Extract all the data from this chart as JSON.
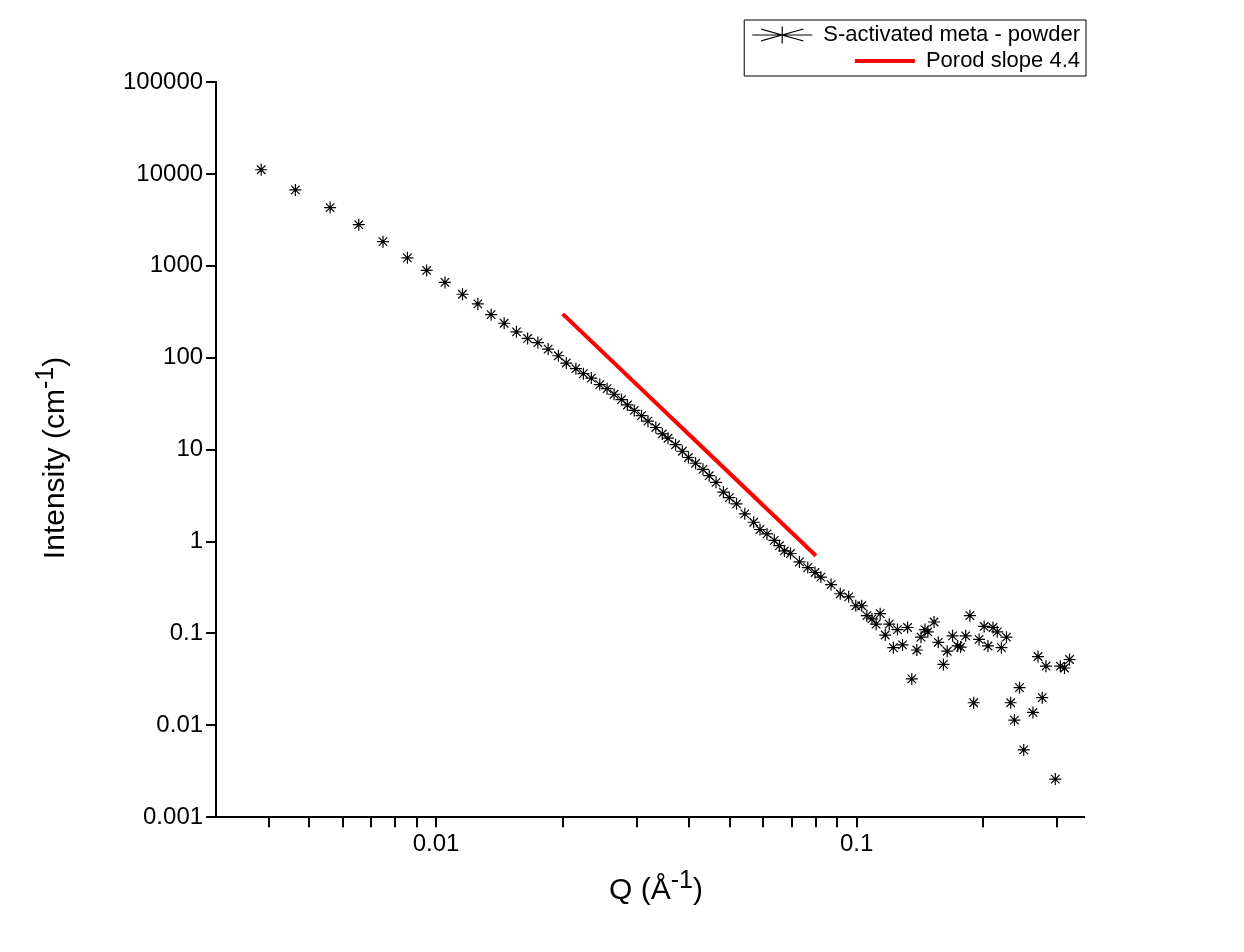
{
  "chart_data": {
    "type": "scatter",
    "xlabel": "Q (Å$^{-1}$)",
    "ylabel": "Intensity (cm$^{-1}$)",
    "log": "xy",
    "grid": false,
    "legend": "top right",
    "xlim": [
      0.003,
      0.347
    ],
    "ylim": [
      0.001,
      100000
    ],
    "xticks": [
      {
        "value": 0.004,
        "label": null
      },
      {
        "value": 0.005,
        "label": null
      },
      {
        "value": 0.006,
        "label": null
      },
      {
        "value": 0.007,
        "label": null
      },
      {
        "value": 0.008,
        "label": null
      },
      {
        "value": 0.009,
        "label": null
      },
      0.01,
      {
        "value": 0.02,
        "label": null
      },
      {
        "value": 0.03,
        "label": null
      },
      {
        "value": 0.04,
        "label": null
      },
      {
        "value": 0.05,
        "label": null
      },
      {
        "value": 0.06,
        "label": null
      },
      {
        "value": 0.07,
        "label": null
      },
      {
        "value": 0.08,
        "label": null
      },
      {
        "value": 0.09,
        "label": null
      },
      0.1,
      {
        "value": 0.2,
        "label": null
      },
      {
        "value": 0.3,
        "label": null
      }
    ],
    "yticks": [
      0.001,
      0.01,
      0.1,
      1,
      10,
      100,
      1000,
      10000,
      100000
    ],
    "series": [
      {
        "name": "S-activated meta - powder",
        "marker": "cross",
        "color": "#000000",
        "x": [
          0.00384,
          0.00463,
          0.0056,
          0.00655,
          0.00748,
          0.00855,
          0.0095,
          0.0105,
          0.01156,
          0.01257,
          0.01352,
          0.01452,
          0.01553,
          0.01651,
          0.01746,
          0.01847,
          0.01953,
          0.0204,
          0.0215,
          0.0224,
          0.0234,
          0.0245,
          0.0255,
          0.0265,
          0.0276,
          0.0285,
          0.0296,
          0.0308,
          0.0319,
          0.0333,
          0.0345,
          0.0356,
          0.0371,
          0.0385,
          0.0398,
          0.0414,
          0.0431,
          0.0446,
          0.0463,
          0.0482,
          0.0498,
          0.0518,
          0.0542,
          0.0569,
          0.0589,
          0.0612,
          0.0637,
          0.0655,
          0.0673,
          0.0696,
          0.0731,
          0.0765,
          0.0796,
          0.0822,
          0.0869,
          0.0914,
          0.0957,
          0.0995,
          0.1028,
          0.1057,
          0.1087,
          0.1112,
          0.1137,
          0.1169,
          0.1195,
          0.1222,
          0.125,
          0.1285,
          0.1321,
          0.1352,
          0.139,
          0.1422,
          0.1453,
          0.1476,
          0.1527,
          0.1563,
          0.1607,
          0.1641,
          0.169,
          0.1738,
          0.1766,
          0.1816,
          0.1858,
          0.1897,
          0.1954,
          0.2009,
          0.2051,
          0.2109,
          0.2158,
          0.2208,
          0.227,
          0.2323,
          0.2371,
          0.2438,
          0.2495,
          0.2624,
          0.2698,
          0.2761,
          0.2818,
          0.2965,
          0.3048,
          0.3119,
          0.3206
        ],
        "values": [
          11100,
          6700,
          4300,
          2800,
          1830,
          1220,
          890,
          660,
          490,
          385,
          294,
          237,
          191,
          162,
          146,
          124,
          105,
          87.5,
          76,
          67,
          60,
          51,
          46,
          40,
          35,
          30.6,
          26.7,
          23.4,
          20.4,
          17.4,
          14.8,
          13.3,
          11.3,
          9.6,
          8.2,
          7.1,
          6.1,
          5.2,
          4.4,
          3.45,
          3.0,
          2.57,
          2.0,
          1.62,
          1.35,
          1.21,
          1.03,
          0.9,
          0.79,
          0.74,
          0.6,
          0.52,
          0.46,
          0.41,
          0.34,
          0.27,
          0.25,
          0.2,
          0.2,
          0.156,
          0.144,
          0.126,
          0.164,
          0.096,
          0.126,
          0.07,
          0.11,
          0.075,
          0.116,
          0.032,
          0.066,
          0.091,
          0.11,
          0.104,
          0.133,
          0.08,
          0.046,
          0.064,
          0.094,
          0.073,
          0.071,
          0.094,
          0.156,
          0.0176,
          0.086,
          0.119,
          0.073,
          0.116,
          0.104,
          0.07,
          0.091,
          0.0176,
          0.0114,
          0.0257,
          0.0054,
          0.0138,
          0.056,
          0.02,
          0.044,
          0.0026,
          0.044,
          0.042,
          0.052
        ]
      },
      {
        "name": "Porod slope 4.4",
        "type": "line",
        "marker": "none",
        "color": "#ff0000",
        "x": [
          0.02,
          0.08
        ],
        "values": [
          300,
          0.7
        ]
      }
    ]
  }
}
